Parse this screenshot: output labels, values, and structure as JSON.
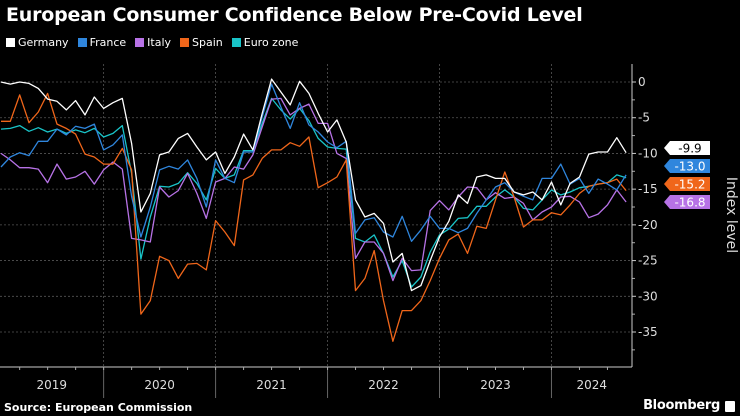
{
  "title": "European Consumer Confidence Below Pre-Covid Level",
  "source": "Source: European Commission",
  "brand": "Bloomberg",
  "chart_data": {
    "type": "line",
    "title": "European Consumer Confidence Below Pre-Covid Level",
    "ylabel": "Index level",
    "xlabel": "",
    "x_start": "2019-02",
    "x_end": "2024-09",
    "frequency": "monthly",
    "x_tick_labels": [
      "2019",
      "2020",
      "2021",
      "2022",
      "2023",
      "2024"
    ],
    "y_ticks": [
      "0",
      "-5",
      "-10",
      "-15",
      "-20",
      "-25",
      "-30",
      "-35"
    ],
    "ylim": [
      -38,
      3
    ],
    "grid": true,
    "legend_position": "top-left",
    "series": [
      {
        "name": "Germany",
        "color": "#ffffff",
        "end_label": "-9.9",
        "values": [
          0,
          -0.3,
          0,
          -0.2,
          -0.9,
          -2.4,
          -2.7,
          -3.9,
          -2.6,
          -4.6,
          -2.1,
          -3.7,
          -2.9,
          -2.3,
          -8.6,
          -18.2,
          -15.6,
          -10.2,
          -9.8,
          -7.9,
          -7.2,
          -9.1,
          -10.9,
          -9.8,
          -12.8,
          -10.5,
          -7.3,
          -9.5,
          -4.4,
          0.4,
          -1.4,
          -3.2,
          0.1,
          -1.6,
          -4.4,
          -7.0,
          -5.3,
          -8.4,
          -16.5,
          -18.9,
          -18.4,
          -19.8,
          -25.2,
          -24,
          -29.2,
          -28.5,
          -25,
          -21.7,
          -19.5,
          -15.8,
          -17,
          -13.3,
          -13,
          -13.5,
          -13.5,
          -15.4,
          -15.8,
          -15.4,
          -16.5,
          -14,
          -17.2,
          -14.2,
          -13.3,
          -10.1,
          -9.8,
          -9.8,
          -7.8,
          -9.9
        ]
      },
      {
        "name": "France",
        "color": "#2f86dd",
        "end_label": "-13.0",
        "values": [
          -11.9,
          -10.5,
          -9.9,
          -10.3,
          -8.3,
          -8.3,
          -6.6,
          -7.4,
          -6.2,
          -6.5,
          -5.9,
          -9.5,
          -8.8,
          -7.4,
          -16,
          -21.7,
          -17.5,
          -12.3,
          -11.8,
          -12.2,
          -10.9,
          -13.5,
          -17.5,
          -10.9,
          -13.5,
          -14.1,
          -9.8,
          -9.8,
          -4.9,
          -0.3,
          -3.5,
          -6.5,
          -2.9,
          -6,
          -7,
          -8.4,
          -9.2,
          -8.3,
          -21.2,
          -19.3,
          -19,
          -21,
          -21.7,
          -18.8,
          -22.3,
          -20.7,
          -18.8,
          -20.5,
          -20.5,
          -21.1,
          -20.5,
          -18.4,
          -16.5,
          -14.7,
          -14.1,
          -15.4,
          -16,
          -16.5,
          -13.5,
          -13.5,
          -11.5,
          -14.3,
          -13.5,
          -15.6,
          -13.6,
          -14.3,
          -15.1,
          -13.0
        ]
      },
      {
        "name": "Italy",
        "color": "#b772e6",
        "end_label": "-16.8",
        "values": [
          -10,
          -10.9,
          -12,
          -12,
          -12.2,
          -14.1,
          -11.5,
          -13.6,
          -13.3,
          -12.5,
          -14.3,
          -12.3,
          -11.2,
          -12.2,
          -21.9,
          -22.1,
          -22.4,
          -14.7,
          -16.1,
          -15.2,
          -12.8,
          -15.6,
          -19.1,
          -14,
          -13.5,
          -11.9,
          -12.2,
          -10.2,
          -6.3,
          -2.4,
          -2.3,
          -4.6,
          -3.7,
          -3.1,
          -5.8,
          -5.8,
          -10,
          -10.7,
          -24.7,
          -22.4,
          -22.4,
          -24,
          -27.8,
          -24.7,
          -26.4,
          -26.3,
          -18,
          -16.6,
          -17.9,
          -16.1,
          -14.7,
          -14.8,
          -16.5,
          -15.5,
          -16.3,
          -16.1,
          -17,
          -19.3,
          -18.2,
          -17.5,
          -16.1,
          -16,
          -16.8,
          -19,
          -18.5,
          -17.2,
          -15.1,
          -16.8
        ]
      },
      {
        "name": "Spain",
        "color": "#f0661a",
        "end_label": "-15.2",
        "values": [
          -5.5,
          -5.5,
          -1.8,
          -5.7,
          -4.2,
          -1.6,
          -5.9,
          -6.5,
          -7.3,
          -10.1,
          -10.5,
          -11.5,
          -11.5,
          -9.3,
          -12.3,
          -32.5,
          -30.6,
          -24.4,
          -25,
          -27.5,
          -25.5,
          -25.4,
          -26.3,
          -19.4,
          -21,
          -22.9,
          -13.7,
          -13,
          -10.7,
          -9.5,
          -9.5,
          -8.5,
          -9,
          -7.7,
          -14.8,
          -14.1,
          -13.3,
          -10.9,
          -29.2,
          -27.5,
          -23.6,
          -30.6,
          -36.3,
          -32,
          -32,
          -30.6,
          -27.8,
          -24.7,
          -22.1,
          -21.3,
          -24,
          -20.2,
          -20.5,
          -16.5,
          -12.6,
          -16.1,
          -20.3,
          -19.3,
          -19.3,
          -18.3,
          -18.6,
          -17.2,
          -15.6,
          -14.6,
          -14.3,
          -14.1,
          -13.6,
          -15.2
        ]
      },
      {
        "name": "Euro zone",
        "color": "#19c4c8",
        "values": [
          -6.6,
          -6.5,
          -6.1,
          -6.9,
          -6.4,
          -7,
          -6.6,
          -7.2,
          -6.7,
          -7.1,
          -6.5,
          -7.7,
          -7.2,
          -6.1,
          -12.8,
          -24.8,
          -18.9,
          -14.6,
          -14.7,
          -14.2,
          -12.7,
          -14.2,
          -16.5,
          -12.1,
          -13.5,
          -13,
          -9.6,
          -9.6,
          -5.8,
          -2.3,
          -3.9,
          -5.2,
          -3.7,
          -5.4,
          -7.9,
          -9.1,
          -9.3,
          -9.4,
          -21.9,
          -22.4,
          -21.4,
          -24,
          -27.3,
          -25,
          -28.7,
          -27.3,
          -23.8,
          -21.4,
          -20.6,
          -19.1,
          -19,
          -17.4,
          -17.4,
          -16.1,
          -15.1,
          -16.1,
          -17.7,
          -17.9,
          -16.5,
          -15.1,
          -15.8,
          -15.4,
          -14.8,
          -14.6,
          -14.3,
          -14.1,
          -13,
          -13.4
        ]
      }
    ]
  }
}
